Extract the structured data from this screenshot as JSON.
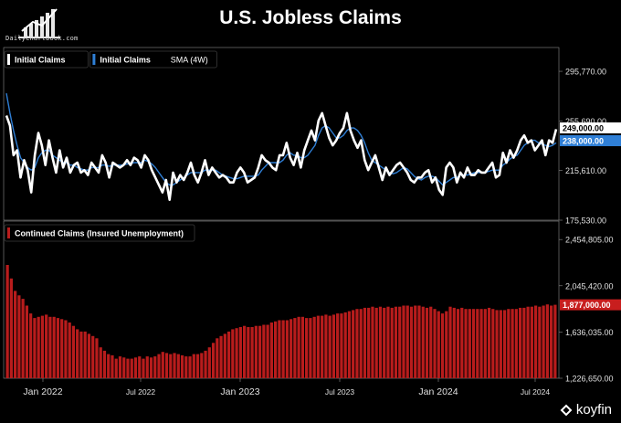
{
  "brand": {
    "site": "DailyChartbook.com"
  },
  "title": "U.S. Jobless Claims",
  "chart_data": [
    {
      "type": "line",
      "legend": [
        {
          "label": "Initial Claims",
          "suffix": "",
          "color": "#ffffff"
        },
        {
          "label": "Initial Claims",
          "suffix": "SMA (4W)",
          "color": "#2f7fd6"
        }
      ],
      "y_ticks": [
        "295,770.00",
        "255,690.00",
        "215,610.00",
        "175,530.00"
      ],
      "ylim": [
        175530,
        315000
      ],
      "last_labels": [
        {
          "text": "249,000.00",
          "bg": "#ffffff",
          "fg": "#000000",
          "value": 249000
        },
        {
          "text": "238,000.00",
          "bg": "#2f7fd6",
          "fg": "#ffffff",
          "value": 238000
        }
      ],
      "series": [
        {
          "name": "Initial Claims",
          "color": "#ffffff",
          "values": [
            260000,
            252000,
            228000,
            232000,
            210000,
            224000,
            216000,
            198000,
            228000,
            246000,
            236000,
            220000,
            240000,
            226000,
            214000,
            232000,
            218000,
            226000,
            214000,
            220000,
            222000,
            214000,
            216000,
            212000,
            222000,
            218000,
            214000,
            228000,
            222000,
            210000,
            222000,
            220000,
            218000,
            220000,
            224000,
            220000,
            226000,
            224000,
            218000,
            228000,
            224000,
            216000,
            210000,
            204000,
            198000,
            208000,
            192000,
            214000,
            206000,
            212000,
            208000,
            214000,
            222000,
            212000,
            206000,
            214000,
            224000,
            212000,
            218000,
            214000,
            210000,
            212000,
            210000,
            206000,
            206000,
            214000,
            218000,
            214000,
            206000,
            208000,
            210000,
            218000,
            228000,
            224000,
            222000,
            218000,
            216000,
            228000,
            228000,
            238000,
            226000,
            220000,
            230000,
            218000,
            232000,
            240000,
            248000,
            240000,
            256000,
            262000,
            252000,
            242000,
            236000,
            240000,
            246000,
            250000,
            262000,
            248000,
            240000,
            234000,
            240000,
            224000,
            216000,
            222000,
            228000,
            218000,
            208000,
            218000,
            212000,
            216000,
            220000,
            222000,
            218000,
            214000,
            208000,
            206000,
            210000,
            210000,
            214000,
            216000,
            206000,
            210000,
            200000,
            196000,
            218000,
            222000,
            218000,
            206000,
            214000,
            210000,
            218000,
            212000,
            212000,
            216000,
            214000,
            214000,
            218000,
            222000,
            210000,
            212000,
            230000,
            222000,
            232000,
            226000,
            232000,
            240000,
            244000,
            238000,
            240000,
            232000,
            236000,
            240000,
            228000,
            240000,
            238000,
            249000
          ]
        },
        {
          "name": "Initial Claims SMA (4W)",
          "color": "#2f7fd6",
          "values": [
            278000,
            262000,
            248000,
            236000,
            226000,
            222000,
            218000,
            216000,
            218000,
            226000,
            230000,
            232000,
            232000,
            228000,
            226000,
            224000,
            222000,
            222000,
            220000,
            220000,
            218000,
            217000,
            216000,
            216000,
            218000,
            218000,
            218000,
            220000,
            220000,
            219000,
            220000,
            220000,
            220000,
            220000,
            221000,
            221000,
            222000,
            222000,
            222000,
            224000,
            223000,
            221000,
            218000,
            214000,
            210000,
            206000,
            204000,
            204000,
            206000,
            208000,
            210000,
            212000,
            214000,
            214000,
            214000,
            214000,
            216000,
            216000,
            216000,
            216000,
            214000,
            212000,
            211000,
            210000,
            209000,
            209000,
            210000,
            211000,
            211000,
            211000,
            211000,
            212000,
            216000,
            219000,
            222000,
            222000,
            222000,
            222000,
            224000,
            228000,
            230000,
            228000,
            228000,
            226000,
            226000,
            228000,
            232000,
            236000,
            244000,
            250000,
            252000,
            250000,
            246000,
            242000,
            242000,
            244000,
            248000,
            250000,
            250000,
            248000,
            244000,
            238000,
            230000,
            224000,
            222000,
            220000,
            218000,
            216000,
            214000,
            213000,
            214000,
            216000,
            218000,
            217000,
            214000,
            211000,
            209000,
            208000,
            210000,
            211000,
            211000,
            210000,
            207000,
            204000,
            206000,
            208000,
            210000,
            210000,
            212000,
            212000,
            212000,
            213000,
            214000,
            214000,
            214000,
            214000,
            215000,
            216000,
            216000,
            216000,
            220000,
            222000,
            225000,
            227000,
            228000,
            232000,
            236000,
            238000,
            240000,
            240000,
            238000,
            237000,
            236000,
            235000,
            236000,
            238000
          ]
        }
      ]
    },
    {
      "type": "bar",
      "legend": [
        {
          "label": "Continued Claims (Insured Unemployment)",
          "color": "#b81c1c"
        }
      ],
      "y_ticks": [
        "2,454,805.00",
        "2,045,420.00",
        "1,636,035.00",
        "1,226,650.00"
      ],
      "ylim": [
        1226650,
        2618000
      ],
      "x_ticks": [
        "Jan 2022",
        "Jul 2022",
        "Jan 2023",
        "Jul 2023",
        "Jan 2024",
        "Jul 2024"
      ],
      "last_label": {
        "text": "1,877,000.00",
        "bg": "#c81e1e",
        "fg": "#ffffff",
        "value": 1877000
      },
      "series": [
        {
          "name": "Continued Claims",
          "color": "#b81c1c",
          "values": [
            2230000,
            2110000,
            2000000,
            1960000,
            1930000,
            1870000,
            1800000,
            1760000,
            1770000,
            1780000,
            1790000,
            1770000,
            1770000,
            1760000,
            1750000,
            1740000,
            1720000,
            1690000,
            1660000,
            1640000,
            1640000,
            1620000,
            1600000,
            1580000,
            1500000,
            1470000,
            1440000,
            1430000,
            1400000,
            1420000,
            1410000,
            1400000,
            1400000,
            1410000,
            1420000,
            1400000,
            1420000,
            1410000,
            1420000,
            1440000,
            1460000,
            1450000,
            1440000,
            1450000,
            1440000,
            1430000,
            1420000,
            1420000,
            1440000,
            1440000,
            1450000,
            1470000,
            1500000,
            1540000,
            1580000,
            1600000,
            1620000,
            1640000,
            1660000,
            1670000,
            1680000,
            1690000,
            1680000,
            1680000,
            1690000,
            1690000,
            1700000,
            1700000,
            1720000,
            1730000,
            1740000,
            1740000,
            1740000,
            1750000,
            1760000,
            1770000,
            1770000,
            1760000,
            1760000,
            1770000,
            1780000,
            1780000,
            1790000,
            1780000,
            1790000,
            1800000,
            1800000,
            1810000,
            1820000,
            1830000,
            1840000,
            1840000,
            1850000,
            1850000,
            1860000,
            1850000,
            1860000,
            1850000,
            1860000,
            1850000,
            1860000,
            1860000,
            1870000,
            1870000,
            1860000,
            1870000,
            1870000,
            1860000,
            1850000,
            1860000,
            1840000,
            1820000,
            1800000,
            1820000,
            1860000,
            1850000,
            1840000,
            1850000,
            1840000,
            1840000,
            1840000,
            1840000,
            1840000,
            1840000,
            1850000,
            1840000,
            1830000,
            1830000,
            1830000,
            1840000,
            1840000,
            1840000,
            1850000,
            1850000,
            1860000,
            1860000,
            1870000,
            1860000,
            1870000,
            1880000,
            1870000,
            1877000
          ]
        }
      ]
    }
  ],
  "footer": {
    "brand": "koyfin"
  }
}
